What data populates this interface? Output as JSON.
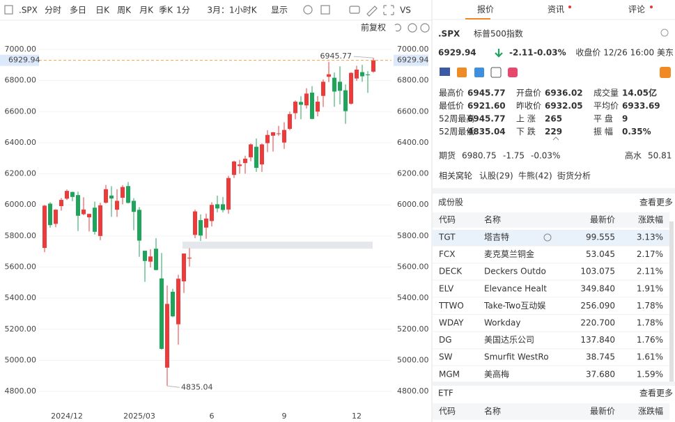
{
  "toolbar": {
    "symbol": ".SPX",
    "periods": [
      "分时",
      "多日",
      "日K",
      "周K",
      "月K",
      "季K"
    ],
    "active_period": "周K",
    "interval": "1分",
    "range": "3月：1小时K",
    "display": "显示",
    "compare": "VS",
    "adjust": "前复权"
  },
  "chart_data": {
    "type": "candlestick",
    "up_color": "#eb3b3a",
    "down_color": "#1fa45b",
    "grid": true,
    "categories": [
      null,
      null,
      null,
      null,
      "2024/12",
      null,
      null,
      null,
      null,
      null,
      null,
      null,
      null,
      null,
      null,
      null,
      null,
      "2025/03",
      null,
      null,
      null,
      null,
      null,
      null,
      null,
      null,
      null,
      null,
      null,
      null,
      "6",
      null,
      null,
      null,
      null,
      null,
      null,
      null,
      null,
      null,
      null,
      null,
      null,
      "9",
      null,
      null,
      null,
      null,
      null,
      null,
      null,
      null,
      null,
      null,
      null,
      null,
      "12",
      null,
      null,
      null
    ],
    "candles": [
      [
        5723,
        5999,
        5696,
        5995
      ],
      [
        6008,
        6017,
        5853,
        5870
      ],
      [
        5878,
        5972,
        5856,
        5969
      ],
      [
        5992,
        6044,
        5963,
        6032
      ],
      [
        6040,
        6099,
        6031,
        6090
      ],
      [
        6083,
        6085,
        6024,
        6051
      ],
      [
        6063,
        6085,
        5832,
        5930
      ],
      [
        5940,
        6049,
        5933,
        5970
      ],
      [
        5920,
        5942,
        5829,
        5942
      ],
      [
        5982,
        6021,
        5809,
        5827
      ],
      [
        5800,
        6014,
        5773,
        5997
      ],
      [
        6014,
        6128,
        6009,
        6101
      ],
      [
        6060,
        6120,
        5923,
        6041
      ],
      [
        5969,
        6101,
        5923,
        6026
      ],
      [
        6046,
        6127,
        6003,
        6115
      ],
      [
        6121,
        6147,
        6009,
        6013
      ],
      [
        6026,
        6043,
        5837,
        5955
      ],
      [
        5968,
        5986,
        5666,
        5770
      ],
      [
        5705,
        5705,
        5505,
        5639
      ],
      [
        5635,
        5715,
        5598,
        5668
      ],
      [
        5718,
        5786,
        5578,
        5581
      ],
      [
        5527,
        5691,
        5069,
        5074
      ],
      [
        4953,
        5482,
        4835.04,
        5363
      ],
      [
        5441,
        5460,
        5278,
        5283
      ],
      [
        5232,
        5551,
        5101,
        5525
      ],
      [
        5508,
        5687,
        5433,
        5687
      ],
      [
        5655,
        5721,
        5603,
        5660
      ],
      [
        5807,
        5969,
        5786,
        5958
      ],
      [
        5902,
        5939,
        5768,
        5803
      ],
      [
        5854,
        5943,
        5782,
        5912
      ],
      [
        5896,
        6017,
        5861,
        6000
      ],
      [
        6004,
        6059,
        5952,
        5977
      ],
      [
        6004,
        6051,
        5952,
        5967
      ],
      [
        5970,
        6187,
        5943,
        6173
      ],
      [
        6193,
        6284,
        6173,
        6279
      ],
      [
        6250,
        6290,
        6201,
        6260
      ],
      [
        6269,
        6316,
        6201,
        6297
      ],
      [
        6306,
        6395,
        6281,
        6389
      ],
      [
        6374,
        6427,
        6212,
        6238
      ],
      [
        6260,
        6395,
        6212,
        6389
      ],
      [
        6397,
        6481,
        6339,
        6450
      ],
      [
        6445,
        6469,
        6343,
        6467
      ],
      [
        6457,
        6508,
        6444,
        6460
      ],
      [
        6401,
        6532,
        6360,
        6482
      ],
      [
        6489,
        6600,
        6481,
        6584
      ],
      [
        6590,
        6672,
        6551,
        6664
      ],
      [
        6662,
        6699,
        6551,
        6644
      ],
      [
        6640,
        6750,
        6620,
        6716
      ],
      [
        6722,
        6764,
        6550,
        6553
      ],
      [
        6600,
        6700,
        6570,
        6664
      ],
      [
        6701,
        6807,
        6630,
        6792
      ],
      [
        6824,
        6920,
        6790,
        6840
      ],
      [
        6818,
        6851,
        6631,
        6729
      ],
      [
        6792,
        6891,
        6646,
        6734
      ],
      [
        6737,
        6775,
        6521,
        6603
      ],
      [
        6651,
        6853,
        6645,
        6849
      ],
      [
        6813,
        6895,
        6798,
        6870
      ],
      [
        6854,
        6901,
        6792,
        6827
      ],
      [
        6839,
        6860,
        6720,
        6834
      ],
      [
        6857,
        6945.77,
        6850,
        6929.94
      ]
    ],
    "ylim": [
      4675,
      7085
    ],
    "yticks": [
      {
        "value": 4800,
        "label": "4800.00"
      },
      {
        "value": 5000,
        "label": "5000.00"
      },
      {
        "value": 5200,
        "label": "5200.00"
      },
      {
        "value": 5400,
        "label": "5400.00"
      },
      {
        "value": 5600,
        "label": "5600.00"
      },
      {
        "value": 5800,
        "label": "5800.00"
      },
      {
        "value": 6000,
        "label": "6000.00"
      },
      {
        "value": 6200,
        "label": "6200.00"
      },
      {
        "value": 6400,
        "label": "6400.00"
      },
      {
        "value": 6600,
        "label": "6600.00"
      },
      {
        "value": 6800,
        "label": "6800.00"
      },
      {
        "value": 7000,
        "label": "7000.00"
      }
    ],
    "last_price": 6929.94,
    "max_annotation": 6945.77,
    "min_annotation": 4835.04
  },
  "panel": {
    "tabs": [
      "报价",
      "资讯",
      "评论"
    ],
    "symbol": ".SPX",
    "name": "标普500指数",
    "price": "6929.94",
    "change": "-2.11",
    "change_pct": "-0.03%",
    "close_time": "收盘价 12/26 16:00 美东",
    "stats": [
      [
        [
          "最高价",
          "6945.77"
        ],
        [
          "开盘价",
          "6936.02"
        ],
        [
          "成交量",
          "14.05亿"
        ]
      ],
      [
        [
          "最低价",
          "6921.60"
        ],
        [
          "昨收价",
          "6932.05"
        ],
        [
          "平均价",
          "6933.69"
        ]
      ],
      [
        [
          "52周最高",
          "6945.77"
        ],
        [
          "上 涨",
          "265"
        ],
        [
          "平 盘",
          "9"
        ]
      ],
      [
        [
          "52周最低",
          "4835.04"
        ],
        [
          "下 跌",
          "229"
        ],
        [
          "振 幅",
          "0.35%"
        ]
      ]
    ],
    "futures": {
      "label": "期货",
      "price": "6980.75",
      "change": "-1.75",
      "change_pct": "-0.03%",
      "premium_label": "高水",
      "premium": "50.81"
    },
    "warrants": {
      "label": "相关窝轮",
      "links": [
        "认股(29)",
        "牛熊(42)",
        "街货分析"
      ]
    },
    "constituents": {
      "title": "成份股",
      "more": "查看更多",
      "columns": [
        "代码",
        "名称",
        "最新价",
        "涨跌幅"
      ],
      "rows": [
        [
          "TGT",
          "塔吉特",
          "99.555",
          "3.13%"
        ],
        [
          "FCX",
          "麦克莫兰铜金",
          "53.045",
          "2.17%"
        ],
        [
          "DECK",
          "Deckers Outdo",
          "103.075",
          "2.11%"
        ],
        [
          "ELV",
          "Elevance Healt",
          "349.840",
          "1.91%"
        ],
        [
          "TTWO",
          "Take-Two互动娱",
          "256.090",
          "1.78%"
        ],
        [
          "WDAY",
          "Workday",
          "220.700",
          "1.78%"
        ],
        [
          "DG",
          "美国达乐公司",
          "137.840",
          "1.76%"
        ],
        [
          "SW",
          "Smurfit WestRo",
          "38.745",
          "1.61%"
        ],
        [
          "MGM",
          "美高梅",
          "37.680",
          "1.59%"
        ]
      ]
    },
    "etf": {
      "title": "ETF",
      "more": "查看更多",
      "columns": [
        "代码",
        "名称",
        "最新价",
        "涨跌幅"
      ]
    }
  }
}
